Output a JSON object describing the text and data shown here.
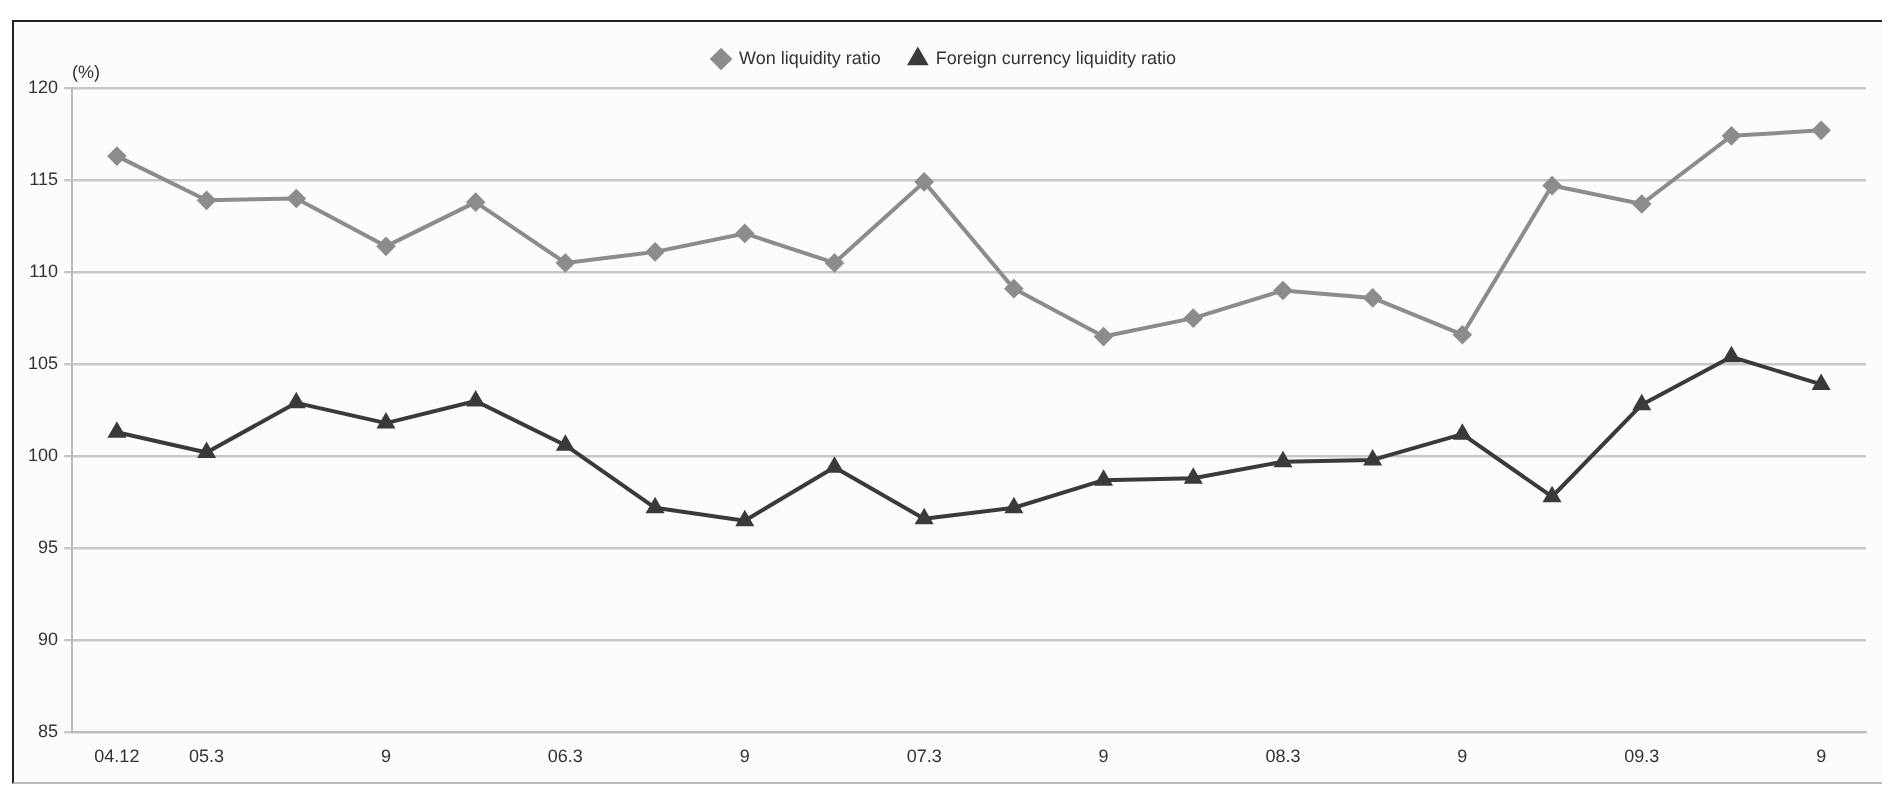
{
  "chart_data": {
    "type": "line",
    "ylabel": "(%)",
    "categories": [
      "04.12",
      "05.3",
      null,
      "9",
      null,
      "06.3",
      null,
      "9",
      null,
      "07.3",
      null,
      "9",
      null,
      "08.3",
      null,
      "9",
      null,
      "09.3",
      null,
      "9"
    ],
    "series": [
      {
        "name": "Won liquidity ratio",
        "color": "#8c8c8c",
        "marker": "diamond",
        "values": [
          116.3,
          113.9,
          114.0,
          111.4,
          113.8,
          110.5,
          111.1,
          112.1,
          110.5,
          114.9,
          109.1,
          106.5,
          107.5,
          109.0,
          108.6,
          106.6,
          114.7,
          113.7,
          117.4,
          117.7
        ]
      },
      {
        "name": "Foreign currency liquidity ratio",
        "color": "#3a3a3a",
        "marker": "triangle",
        "values": [
          101.3,
          100.2,
          102.9,
          101.8,
          103.0,
          100.6,
          97.2,
          96.5,
          99.4,
          96.6,
          97.2,
          98.7,
          98.8,
          99.7,
          99.8,
          101.2,
          97.8,
          102.8,
          105.4,
          103.9
        ]
      }
    ],
    "ylim": [
      85,
      120
    ],
    "yticks": [
      85,
      90,
      95,
      100,
      105,
      110,
      115,
      120
    ],
    "grid": "y",
    "legend": "top",
    "line_style": "solid"
  }
}
